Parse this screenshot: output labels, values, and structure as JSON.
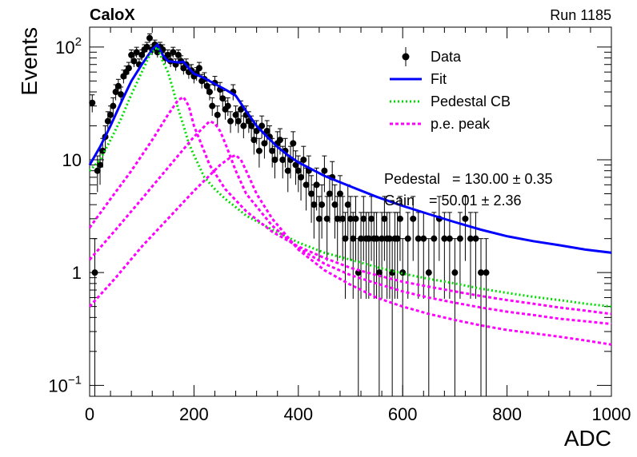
{
  "header": {
    "experiment": "CaloX",
    "run": "Run 1185"
  },
  "stats": {
    "pedestal_label": "Pedestal",
    "pedestal_value": "= 130.00 ± 0.35",
    "gain_label": "Gain",
    "gain_value": "= 50.01 ± 2.36"
  },
  "chart_data": {
    "type": "scatter",
    "xlabel": "ADC",
    "ylabel": "Events",
    "xlim": [
      0,
      1000
    ],
    "ylim": [
      0.08,
      150
    ],
    "yscale": "log",
    "xticks": [
      0,
      200,
      400,
      600,
      800,
      1000
    ],
    "yticks": [
      {
        "v": 0.1,
        "base": "10",
        "exp": "−1"
      },
      {
        "v": 1,
        "label": "1"
      },
      {
        "v": 10,
        "label": "10"
      },
      {
        "v": 100,
        "base": "10",
        "exp": "2"
      }
    ],
    "legend_position": "top-right",
    "series": [
      {
        "name": "Data",
        "kind": "points-with-errors",
        "color": "#000000",
        "x": [
          5,
          10,
          15,
          20,
          25,
          30,
          35,
          40,
          45,
          50,
          55,
          60,
          65,
          70,
          75,
          80,
          85,
          90,
          95,
          100,
          105,
          110,
          115,
          120,
          125,
          130,
          135,
          140,
          145,
          150,
          155,
          160,
          165,
          170,
          175,
          180,
          185,
          190,
          195,
          200,
          205,
          210,
          215,
          220,
          225,
          230,
          235,
          240,
          245,
          250,
          255,
          260,
          265,
          270,
          275,
          280,
          285,
          290,
          295,
          300,
          305,
          310,
          315,
          320,
          325,
          330,
          335,
          340,
          345,
          350,
          355,
          360,
          365,
          370,
          375,
          380,
          385,
          390,
          395,
          400,
          405,
          410,
          415,
          420,
          425,
          430,
          435,
          440,
          445,
          450,
          455,
          460,
          465,
          470,
          475,
          480,
          485,
          490,
          495,
          500,
          505,
          510,
          515,
          520,
          525,
          530,
          535,
          540,
          545,
          550,
          555,
          560,
          565,
          570,
          575,
          580,
          585,
          590,
          595,
          600,
          610,
          620,
          630,
          640,
          650,
          660,
          670,
          680,
          690,
          700,
          710,
          720,
          730,
          740,
          750,
          760
        ],
        "y": [
          32,
          1,
          8,
          9,
          12,
          16,
          22,
          25,
          30,
          40,
          45,
          38,
          55,
          60,
          65,
          85,
          75,
          90,
          70,
          85,
          95,
          100,
          120,
          95,
          105,
          90,
          100,
          95,
          80,
          85,
          75,
          90,
          70,
          85,
          75,
          65,
          70,
          60,
          62,
          55,
          58,
          65,
          50,
          52,
          45,
          40,
          30,
          48,
          25,
          42,
          35,
          28,
          30,
          22,
          40,
          25,
          22,
          28,
          20,
          25,
          22,
          20,
          15,
          18,
          12,
          20,
          14,
          18,
          16,
          12,
          10,
          14,
          15,
          10,
          12,
          8,
          10,
          14,
          9,
          8,
          7,
          10,
          6,
          8,
          5,
          4,
          6,
          3,
          4,
          8,
          3,
          5,
          7,
          4,
          3,
          5,
          3,
          2,
          4,
          3,
          2,
          3,
          1,
          2,
          3,
          2,
          2,
          3,
          2,
          2,
          1,
          2,
          3,
          2,
          2,
          1,
          2,
          2,
          3,
          1,
          2,
          3,
          2,
          2,
          1,
          2,
          3,
          2,
          2,
          1,
          2,
          3,
          2,
          2,
          1,
          1
        ]
      },
      {
        "name": "Fit",
        "kind": "line",
        "color": "#0000ff",
        "x": [
          0,
          20,
          40,
          60,
          80,
          100,
          120,
          130,
          140,
          150,
          160,
          170,
          180,
          190,
          200,
          220,
          240,
          260,
          280,
          300,
          320,
          340,
          360,
          380,
          400,
          450,
          500,
          550,
          600,
          650,
          700,
          750,
          800,
          850,
          900,
          950,
          1000
        ],
        "y": [
          9,
          13,
          20,
          32,
          50,
          70,
          95,
          105,
          85,
          75,
          74,
          73,
          74,
          65,
          58,
          53,
          47,
          42,
          37,
          27,
          20,
          16,
          13,
          11,
          9.5,
          7.2,
          5.8,
          4.7,
          3.9,
          3.3,
          2.8,
          2.4,
          2.1,
          1.9,
          1.75,
          1.6,
          1.5
        ]
      },
      {
        "name": "Pedestal CB",
        "kind": "dotted",
        "color": "#00dd00",
        "x": [
          0,
          20,
          40,
          60,
          80,
          100,
          115,
          130,
          140,
          150,
          160,
          170,
          180,
          190,
          200,
          220,
          240,
          260,
          280,
          300,
          350,
          400,
          450,
          500,
          550,
          600,
          650,
          700,
          750,
          800,
          850,
          900,
          950,
          1000
        ],
        "y": [
          8,
          10,
          15,
          23,
          38,
          60,
          85,
          100,
          75,
          60,
          42,
          28,
          20,
          14,
          11,
          7,
          5.5,
          4.5,
          3.8,
          3.2,
          2.4,
          1.85,
          1.5,
          1.3,
          1.12,
          0.98,
          0.88,
          0.8,
          0.72,
          0.66,
          0.61,
          0.57,
          0.53,
          0.5
        ]
      },
      {
        "name": "p.e. peak",
        "kind": "dashed",
        "color": "#ff00ff",
        "x": [
          0,
          40,
          80,
          120,
          150,
          170,
          180,
          190,
          200,
          230,
          260,
          300,
          350,
          400,
          450,
          500,
          550,
          600,
          650,
          700,
          750,
          800,
          850,
          900,
          950,
          1000
        ],
        "y": [
          2.5,
          4.5,
          8,
          15,
          25,
          34,
          36,
          30,
          20,
          9,
          5.5,
          3.5,
          2.3,
          1.7,
          1.35,
          1.1,
          0.95,
          0.83,
          0.75,
          0.68,
          0.62,
          0.57,
          0.53,
          0.49,
          0.46,
          0.43
        ]
      },
      {
        "name": "",
        "kind": "dashed",
        "color": "#ff00ff",
        "x": [
          0,
          50,
          100,
          150,
          200,
          230,
          240,
          250,
          260,
          280,
          300,
          350,
          400,
          450,
          500,
          550,
          600,
          650,
          700,
          750,
          800,
          850,
          900,
          950,
          1000
        ],
        "y": [
          1.3,
          2.4,
          4.5,
          8.5,
          16,
          22,
          21,
          18,
          14,
          8,
          5,
          2.6,
          1.65,
          1.2,
          0.95,
          0.8,
          0.68,
          0.6,
          0.54,
          0.49,
          0.45,
          0.42,
          0.39,
          0.37,
          0.35
        ]
      },
      {
        "name": "",
        "kind": "dashed",
        "color": "#ff00ff",
        "x": [
          0,
          50,
          100,
          150,
          200,
          250,
          270,
          280,
          290,
          300,
          320,
          350,
          400,
          450,
          500,
          550,
          600,
          650,
          700,
          750,
          800,
          850,
          900,
          950,
          1000
        ],
        "y": [
          0.5,
          0.9,
          1.7,
          3,
          5.3,
          9,
          10.5,
          11,
          10,
          8,
          5,
          3,
          1.6,
          1.05,
          0.78,
          0.6,
          0.5,
          0.43,
          0.38,
          0.34,
          0.31,
          0.29,
          0.27,
          0.25,
          0.23
        ]
      }
    ]
  }
}
